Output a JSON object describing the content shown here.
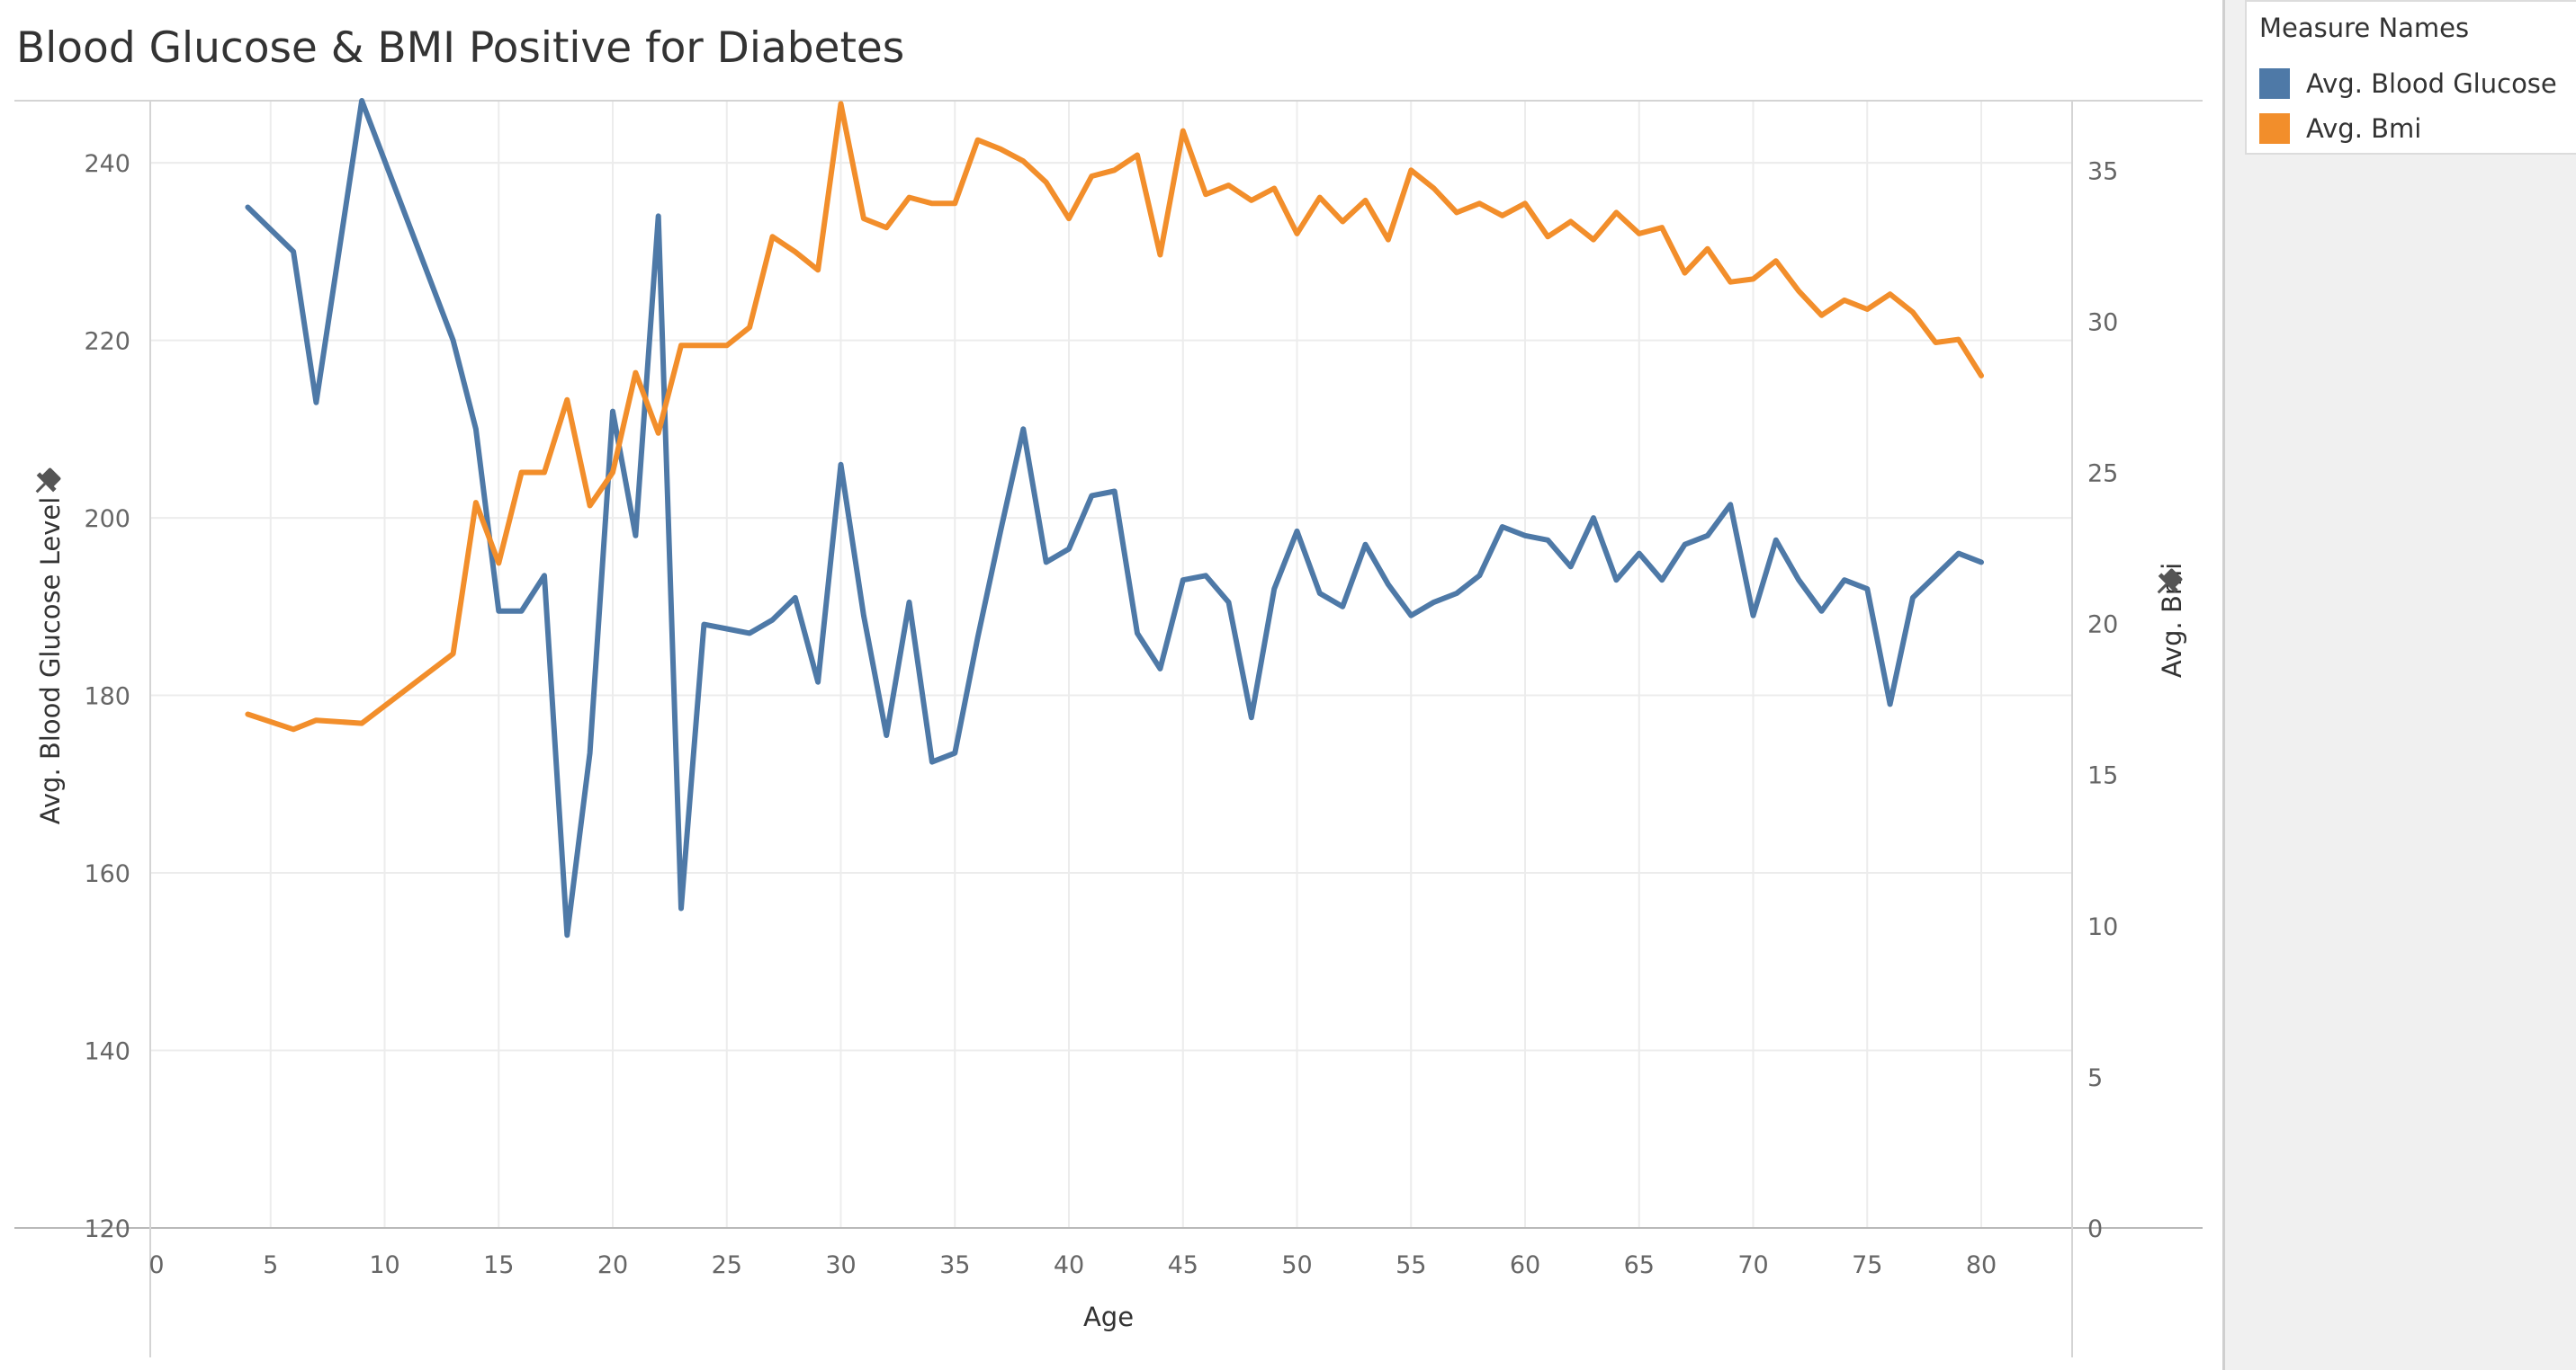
{
  "title": "Blood Glucose & BMI Positive for Diabetes",
  "legend": {
    "title": "Measure Names",
    "items": [
      {
        "label": "Avg. Blood Glucose L..",
        "color": "#4e79a7"
      },
      {
        "label": "Avg. Bmi",
        "color": "#f28e2b"
      }
    ]
  },
  "chart_data": {
    "type": "line",
    "title": "Blood Glucose & BMI Positive for Diabetes",
    "xlabel": "Age",
    "ylabel_left": "Avg. Blood Glucose Level",
    "ylabel_right": "Avg. Bmi",
    "xlim": [
      0,
      80
    ],
    "ylim_left": [
      120,
      247
    ],
    "ylim_right": [
      0,
      37.3
    ],
    "x_ticks": [
      0,
      5,
      10,
      15,
      20,
      25,
      30,
      35,
      40,
      45,
      50,
      55,
      60,
      65,
      70,
      75,
      80
    ],
    "y_left_ticks": [
      120,
      140,
      160,
      180,
      200,
      220,
      240
    ],
    "y_right_ticks": [
      0,
      5,
      10,
      15,
      20,
      25,
      30,
      35
    ],
    "grid": true,
    "legend_position": "right",
    "series": [
      {
        "name": "Avg. Blood Glucose L..",
        "axis": "left",
        "color": "#4e79a7",
        "x": [
          4,
          6,
          7,
          9,
          13,
          14,
          15,
          16,
          17,
          18,
          19,
          20,
          21,
          22,
          23,
          24,
          25,
          26,
          27,
          28,
          29,
          30,
          31,
          32,
          33,
          34,
          35,
          36,
          37,
          38,
          39,
          40,
          41,
          42,
          43,
          44,
          45,
          46,
          47,
          48,
          49,
          50,
          51,
          52,
          53,
          54,
          55,
          56,
          57,
          58,
          59,
          60,
          61,
          62,
          63,
          64,
          65,
          66,
          67,
          68,
          69,
          70,
          71,
          72,
          73,
          74,
          75,
          76,
          77,
          78,
          79,
          80
        ],
        "y": [
          235,
          230,
          213,
          247,
          220,
          210,
          189.5,
          189.5,
          193.5,
          153,
          173.5,
          212,
          198,
          234,
          156,
          188,
          187.5,
          187,
          188.5,
          191,
          181.5,
          206,
          189,
          175.5,
          190.5,
          172.5,
          173.5,
          186.5,
          198.5,
          210,
          195,
          196.5,
          202.5,
          203,
          187,
          183,
          193,
          193.5,
          190.5,
          177.5,
          192,
          198.5,
          191.5,
          190,
          197,
          192.5,
          189,
          190.5,
          191.5,
          193.5,
          199,
          198,
          197.5,
          194.5,
          200,
          193,
          196,
          193,
          197,
          198,
          201.5,
          189,
          197.5,
          193,
          189.5,
          193,
          192,
          179,
          191,
          193.5,
          196,
          195
        ]
      },
      {
        "name": "Avg. Bmi",
        "axis": "right",
        "color": "#f28e2b",
        "x": [
          4,
          6,
          7,
          9,
          13,
          14,
          15,
          16,
          17,
          18,
          19,
          20,
          21,
          22,
          23,
          24,
          25,
          26,
          27,
          28,
          29,
          30,
          31,
          32,
          33,
          34,
          35,
          36,
          37,
          38,
          39,
          40,
          41,
          42,
          43,
          44,
          45,
          46,
          47,
          48,
          49,
          50,
          51,
          52,
          53,
          54,
          55,
          56,
          57,
          58,
          59,
          60,
          61,
          62,
          63,
          64,
          65,
          66,
          67,
          68,
          69,
          70,
          71,
          72,
          73,
          74,
          75,
          76,
          77,
          78,
          79,
          80
        ],
        "y": [
          17,
          16.5,
          16.8,
          16.7,
          19,
          24,
          22,
          25,
          25,
          27.4,
          23.9,
          25,
          28.3,
          26.3,
          29.2,
          29.2,
          29.2,
          29.8,
          32.8,
          32.3,
          31.7,
          37.2,
          33.4,
          33.1,
          34.1,
          33.9,
          33.9,
          36,
          35.7,
          35.3,
          34.6,
          33.4,
          34.8,
          35,
          35.5,
          32.2,
          36.3,
          34.2,
          34.5,
          34,
          34.4,
          32.9,
          34.1,
          33.3,
          34,
          32.7,
          35,
          34.4,
          33.6,
          33.9,
          33.5,
          33.9,
          32.8,
          33.3,
          32.7,
          33.6,
          32.9,
          33.1,
          31.6,
          32.4,
          31.3,
          31.4,
          32,
          31,
          30.2,
          30.7,
          30.4,
          30.9,
          30.3,
          29.3,
          29.4,
          28.2
        ]
      }
    ]
  }
}
